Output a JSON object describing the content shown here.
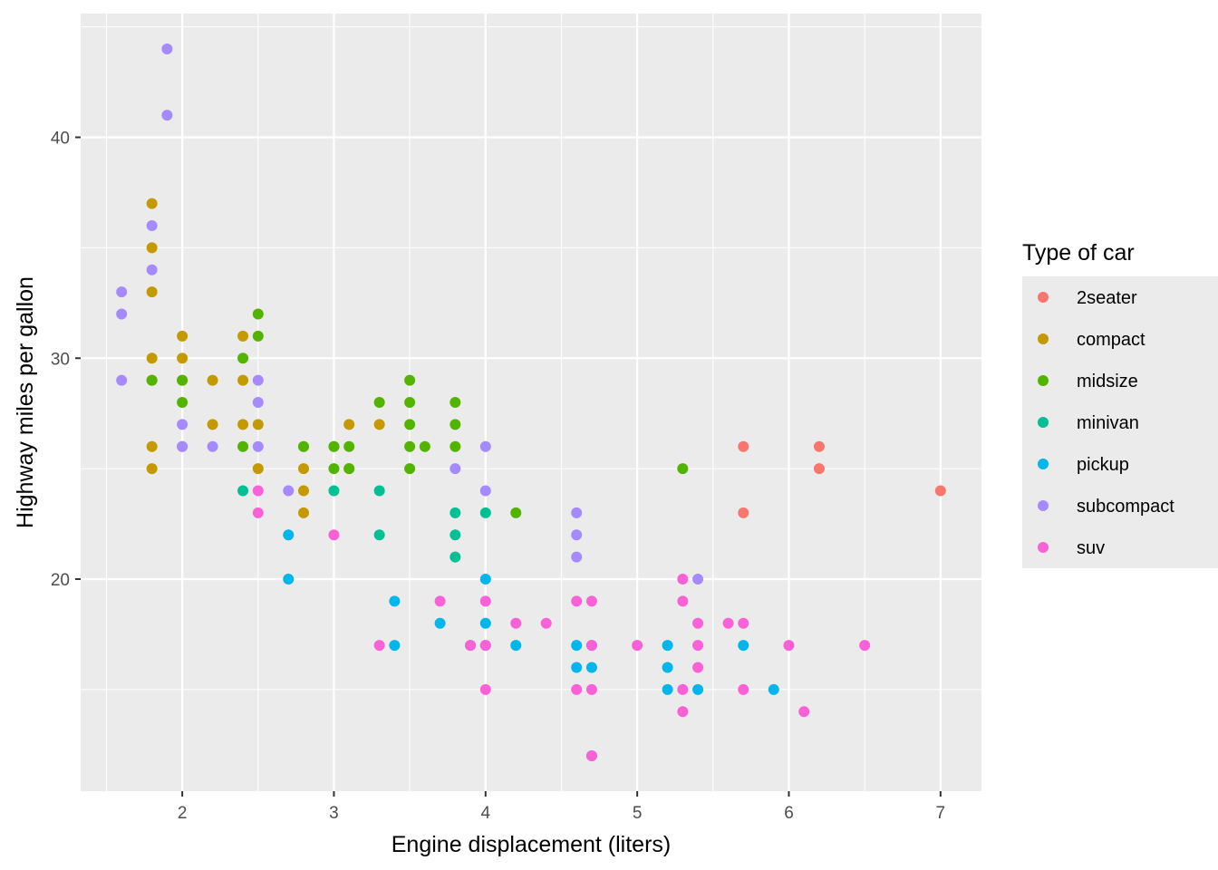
{
  "chart_data": {
    "type": "scatter",
    "xlabel": "Engine displacement (liters)",
    "ylabel": "Highway miles per gallon",
    "xlim": [
      1.33,
      7.27
    ],
    "ylim": [
      10.4,
      45.6
    ],
    "x_ticks": [
      2,
      3,
      4,
      5,
      6,
      7
    ],
    "x_tick_labels": [
      "2",
      "3",
      "4",
      "5",
      "6",
      "7"
    ],
    "y_ticks": [
      20,
      30,
      40
    ],
    "y_tick_labels": [
      "20",
      "30",
      "40"
    ],
    "grid": true,
    "legend": {
      "title": "Type of car",
      "position": "right"
    },
    "series": [
      {
        "name": "2seater",
        "color": "#F8766D",
        "points": [
          [
            5.7,
            26
          ],
          [
            5.7,
            23
          ],
          [
            6.2,
            26
          ],
          [
            6.2,
            25
          ],
          [
            7.0,
            24
          ]
        ]
      },
      {
        "name": "compact",
        "color": "#C49A00",
        "points": [
          [
            1.8,
            37
          ],
          [
            1.8,
            35
          ],
          [
            1.8,
            33
          ],
          [
            1.8,
            30
          ],
          [
            1.8,
            29
          ],
          [
            1.8,
            26
          ],
          [
            1.8,
            25
          ],
          [
            2.0,
            31
          ],
          [
            2.0,
            30
          ],
          [
            2.0,
            29
          ],
          [
            2.0,
            26
          ],
          [
            2.2,
            29
          ],
          [
            2.2,
            27
          ],
          [
            2.4,
            31
          ],
          [
            2.4,
            29
          ],
          [
            2.4,
            27
          ],
          [
            2.5,
            27
          ],
          [
            2.5,
            25
          ],
          [
            2.8,
            26
          ],
          [
            2.8,
            25
          ],
          [
            2.8,
            24
          ],
          [
            2.8,
            23
          ],
          [
            3.0,
            26
          ],
          [
            3.1,
            27
          ],
          [
            3.1,
            25
          ],
          [
            3.3,
            27
          ]
        ]
      },
      {
        "name": "midsize",
        "color": "#53B400",
        "points": [
          [
            1.8,
            29
          ],
          [
            2.0,
            29
          ],
          [
            2.0,
            28
          ],
          [
            2.4,
            30
          ],
          [
            2.4,
            26
          ],
          [
            2.5,
            32
          ],
          [
            2.5,
            31
          ],
          [
            2.8,
            26
          ],
          [
            3.0,
            26
          ],
          [
            3.0,
            25
          ],
          [
            3.1,
            26
          ],
          [
            3.1,
            25
          ],
          [
            3.3,
            28
          ],
          [
            3.5,
            29
          ],
          [
            3.5,
            28
          ],
          [
            3.5,
            27
          ],
          [
            3.5,
            26
          ],
          [
            3.5,
            25
          ],
          [
            3.6,
            26
          ],
          [
            3.8,
            28
          ],
          [
            3.8,
            27
          ],
          [
            3.8,
            26
          ],
          [
            4.2,
            23
          ],
          [
            5.3,
            25
          ]
        ]
      },
      {
        "name": "minivan",
        "color": "#00C094",
        "points": [
          [
            2.4,
            24
          ],
          [
            3.0,
            24
          ],
          [
            3.3,
            24
          ],
          [
            3.3,
            22
          ],
          [
            3.8,
            23
          ],
          [
            3.8,
            22
          ],
          [
            3.8,
            21
          ],
          [
            4.0,
            23
          ]
        ]
      },
      {
        "name": "pickup",
        "color": "#00B6EB",
        "points": [
          [
            2.7,
            22
          ],
          [
            2.7,
            20
          ],
          [
            3.4,
            19
          ],
          [
            3.4,
            17
          ],
          [
            3.7,
            18
          ],
          [
            3.9,
            17
          ],
          [
            4.0,
            20
          ],
          [
            4.0,
            18
          ],
          [
            4.0,
            17
          ],
          [
            4.2,
            17
          ],
          [
            4.6,
            17
          ],
          [
            4.6,
            16
          ],
          [
            4.7,
            17
          ],
          [
            4.7,
            16
          ],
          [
            4.7,
            12
          ],
          [
            5.2,
            17
          ],
          [
            5.2,
            16
          ],
          [
            5.2,
            15
          ],
          [
            5.4,
            15
          ],
          [
            5.7,
            17
          ],
          [
            5.9,
            15
          ]
        ]
      },
      {
        "name": "subcompact",
        "color": "#A58AFF",
        "points": [
          [
            1.6,
            33
          ],
          [
            1.6,
            32
          ],
          [
            1.6,
            29
          ],
          [
            1.8,
            36
          ],
          [
            1.8,
            34
          ],
          [
            1.9,
            44
          ],
          [
            1.9,
            41
          ],
          [
            2.0,
            27
          ],
          [
            2.0,
            26
          ],
          [
            2.2,
            26
          ],
          [
            2.5,
            29
          ],
          [
            2.5,
            28
          ],
          [
            2.5,
            26
          ],
          [
            2.7,
            24
          ],
          [
            3.8,
            25
          ],
          [
            4.0,
            26
          ],
          [
            4.0,
            24
          ],
          [
            4.6,
            23
          ],
          [
            4.6,
            22
          ],
          [
            4.6,
            21
          ],
          [
            5.4,
            20
          ]
        ]
      },
      {
        "name": "suv",
        "color": "#FB61D7",
        "points": [
          [
            2.5,
            24
          ],
          [
            2.5,
            23
          ],
          [
            3.0,
            22
          ],
          [
            3.3,
            17
          ],
          [
            3.7,
            19
          ],
          [
            3.9,
            17
          ],
          [
            4.0,
            19
          ],
          [
            4.0,
            17
          ],
          [
            4.0,
            15
          ],
          [
            4.2,
            18
          ],
          [
            4.4,
            18
          ],
          [
            4.6,
            19
          ],
          [
            4.6,
            15
          ],
          [
            4.7,
            19
          ],
          [
            4.7,
            17
          ],
          [
            4.7,
            15
          ],
          [
            4.7,
            12
          ],
          [
            5.0,
            17
          ],
          [
            5.3,
            20
          ],
          [
            5.3,
            19
          ],
          [
            5.3,
            15
          ],
          [
            5.3,
            14
          ],
          [
            5.4,
            18
          ],
          [
            5.4,
            17
          ],
          [
            5.4,
            16
          ],
          [
            5.6,
            18
          ],
          [
            5.7,
            18
          ],
          [
            5.7,
            15
          ],
          [
            6.0,
            17
          ],
          [
            6.1,
            14
          ],
          [
            6.5,
            17
          ]
        ]
      }
    ]
  }
}
